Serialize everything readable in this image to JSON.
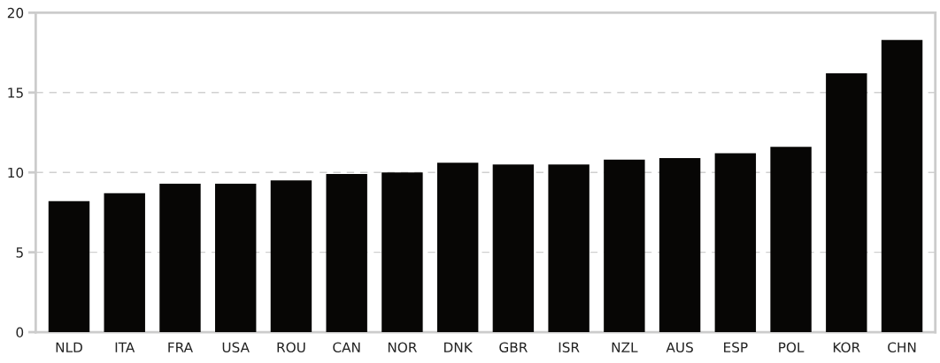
{
  "chart_data": {
    "type": "bar",
    "categories": [
      "NLD",
      "ITA",
      "FRA",
      "USA",
      "ROU",
      "CAN",
      "NOR",
      "DNK",
      "GBR",
      "ISR",
      "NZL",
      "AUS",
      "ESP",
      "POL",
      "KOR",
      "CHN"
    ],
    "values": [
      8.2,
      8.7,
      9.3,
      9.3,
      9.5,
      9.9,
      10.0,
      10.6,
      10.5,
      10.5,
      10.8,
      10.9,
      11.2,
      11.6,
      16.2,
      18.3
    ],
    "color": "#070605",
    "ylim": [
      0,
      20
    ],
    "yticks": [
      0,
      5,
      10,
      15,
      20
    ],
    "grid": "y"
  }
}
